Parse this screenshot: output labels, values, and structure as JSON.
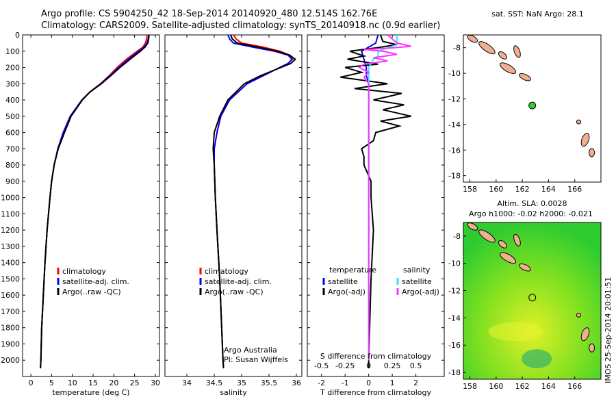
{
  "header": {
    "line1": "Argo profile: CS 5904250_42 18-Sep-2014 20140920_480 12.514S 162.76E",
    "line2": "Climatology: CARS2009. Satellite-adjusted climatology: synTS_20140918.nc (0.9d earlier)"
  },
  "side_label": "IMOS 25-Sep-2014 20:01:51",
  "credits": {
    "line1": "Argo Australia",
    "line2": "PI: Susan Wijffels"
  },
  "colors": {
    "climatology": "#ff0000",
    "satellite": "#0000ff",
    "argo": "#000000",
    "sal_satellite": "#33e5ff",
    "sal_argo": "#ff33ff",
    "land": "#f0b090"
  },
  "chart_data": [
    {
      "type": "line",
      "name": "temperature-profile",
      "xlabel": "temperature (deg C)",
      "ylabel": "",
      "xlim": [
        -2,
        31
      ],
      "ylim": [
        2100,
        0
      ],
      "xticks": [
        0,
        5,
        10,
        15,
        20,
        25,
        30
      ],
      "yticks": [
        0,
        100,
        200,
        300,
        400,
        500,
        600,
        700,
        800,
        900,
        1000,
        1100,
        1200,
        1300,
        1400,
        1500,
        1600,
        1700,
        1800,
        1900,
        2000
      ],
      "legend": [
        "climatology",
        "satellite-adj. clim.",
        "Argo(..raw -QC)"
      ],
      "series": [
        {
          "name": "climatology",
          "depth": [
            0,
            25,
            50,
            75,
            100,
            150,
            200,
            250,
            300,
            350,
            400,
            500,
            600,
            700,
            800,
            900,
            1000,
            1200,
            1400,
            1600,
            1800,
            2000,
            2050
          ],
          "values": [
            28.0,
            27.9,
            27.6,
            27.0,
            25.6,
            23.0,
            20.8,
            18.9,
            16.8,
            14.2,
            12.3,
            9.5,
            7.8,
            6.5,
            5.6,
            5.0,
            4.6,
            3.9,
            3.4,
            3.0,
            2.6,
            2.4,
            2.3
          ]
        },
        {
          "name": "satellite-adj. clim.",
          "depth": [
            0,
            25,
            50,
            75,
            100,
            150,
            200,
            250,
            300,
            350,
            400,
            500,
            600,
            700,
            800,
            900,
            1000,
            1200,
            1400,
            1600,
            1800,
            2000,
            2050
          ],
          "values": [
            28.4,
            28.3,
            28.0,
            27.3,
            26.0,
            23.5,
            21.2,
            19.1,
            16.9,
            14.3,
            12.3,
            9.5,
            7.8,
            6.5,
            5.6,
            5.0,
            4.6,
            3.9,
            3.4,
            3.0,
            2.6,
            2.4,
            2.3
          ]
        },
        {
          "name": "Argo(..raw -QC)",
          "depth": [
            0,
            25,
            50,
            75,
            100,
            150,
            200,
            250,
            300,
            350,
            400,
            500,
            600,
            700,
            800,
            900,
            1000,
            1200,
            1400,
            1600,
            1800,
            2000,
            2050
          ],
          "values": [
            28.5,
            28.4,
            28.2,
            27.5,
            26.4,
            23.9,
            21.5,
            19.3,
            17.0,
            14.3,
            12.4,
            9.7,
            8.1,
            6.6,
            5.6,
            5.0,
            4.6,
            3.9,
            3.4,
            3.0,
            2.6,
            2.4,
            2.3
          ]
        }
      ]
    },
    {
      "type": "line",
      "name": "salinity-profile",
      "xlabel": "salinity",
      "xlim": [
        33.6,
        36.1
      ],
      "ylim": [
        2100,
        0
      ],
      "xticks": [
        34,
        34.5,
        35,
        35.5,
        36
      ],
      "legend": [
        "climatology",
        "satellite-adj. clim.",
        "Argo(..raw -QC)"
      ],
      "series": [
        {
          "name": "climatology",
          "depth": [
            0,
            25,
            50,
            75,
            100,
            125,
            150,
            175,
            200,
            250,
            300,
            400,
            500,
            600,
            700,
            800,
            1000,
            1200,
            1500,
            2000,
            2050
          ],
          "values": [
            34.85,
            34.9,
            35.0,
            35.4,
            35.7,
            35.88,
            35.93,
            35.85,
            35.7,
            35.4,
            35.1,
            34.78,
            34.62,
            34.55,
            34.5,
            34.5,
            34.52,
            34.55,
            34.6,
            34.66,
            34.67
          ]
        },
        {
          "name": "satellite-adj. clim.",
          "depth": [
            0,
            25,
            50,
            75,
            100,
            125,
            150,
            175,
            200,
            250,
            300,
            400,
            500,
            600,
            700,
            800,
            1000,
            1200,
            1500,
            2000,
            2050
          ],
          "values": [
            34.75,
            34.78,
            34.85,
            35.2,
            35.6,
            35.85,
            35.92,
            35.85,
            35.7,
            35.4,
            35.1,
            34.78,
            34.62,
            34.55,
            34.5,
            34.5,
            34.52,
            34.55,
            34.6,
            34.66,
            34.67
          ]
        },
        {
          "name": "Argo(..raw -QC)",
          "depth": [
            0,
            25,
            50,
            75,
            100,
            125,
            150,
            175,
            200,
            250,
            300,
            400,
            500,
            600,
            700,
            800,
            1000,
            1200,
            1500,
            2000,
            2050
          ],
          "values": [
            34.8,
            34.83,
            34.92,
            35.3,
            35.65,
            35.88,
            35.98,
            35.9,
            35.72,
            35.35,
            35.05,
            34.75,
            34.6,
            34.5,
            34.48,
            34.5,
            34.52,
            34.55,
            34.6,
            34.66,
            34.67
          ]
        }
      ]
    },
    {
      "type": "line",
      "name": "difference-profile",
      "xlabel": "T difference from climatology",
      "top_label": "S difference from climatology",
      "xlim": [
        -2.6,
        3.2
      ],
      "ylim": [
        2100,
        0
      ],
      "xticks": [
        -2,
        -1,
        0,
        1,
        2
      ],
      "sticks": [
        "-0.5",
        "-0.25",
        "0",
        "0.25",
        "0.5"
      ],
      "legend_titles": [
        "temperature",
        "salinity"
      ],
      "legend": [
        "satellite",
        "Argo(-adj)",
        "satellite",
        "Argo(-adj)"
      ],
      "series": [
        {
          "name": "satellite",
          "variable": "temperature",
          "depth": [
            0,
            50,
            100,
            150,
            200,
            250,
            300,
            400,
            500,
            700,
            1000,
            1500,
            2000
          ],
          "values": [
            0.4,
            0.3,
            -0.3,
            -0.2,
            -0.1,
            -0.1,
            0.0,
            0.0,
            0.0,
            0.0,
            0.0,
            0.0,
            0.0
          ]
        },
        {
          "name": "Argo(-adj)",
          "variable": "temperature",
          "depth": [
            0,
            40,
            60,
            80,
            100,
            130,
            150,
            180,
            200,
            230,
            260,
            300,
            330,
            360,
            400,
            430,
            460,
            500,
            530,
            560,
            600,
            650,
            700,
            750,
            800,
            900,
            1000,
            1200,
            1500,
            2000,
            2050
          ],
          "values": [
            0.5,
            0.6,
            1.2,
            0.3,
            -0.8,
            -0.2,
            -0.9,
            0.4,
            -1.0,
            -0.3,
            -1.2,
            0.8,
            -0.6,
            1.4,
            0.2,
            1.5,
            0.6,
            1.8,
            0.5,
            1.3,
            0.3,
            0.2,
            -0.3,
            -0.2,
            -0.2,
            0.1,
            0.1,
            0.2,
            0.1,
            0.0,
            0.0
          ]
        },
        {
          "name": "satellite",
          "variable": "salinity",
          "depth": [
            0,
            60,
            80,
            100,
            130,
            150,
            200,
            300,
            400,
            500,
            700,
            1000,
            1500,
            2000
          ],
          "values": [
            0.3,
            0.3,
            0.2,
            0.1,
            0.1,
            0.05,
            0.0,
            0.0,
            0.0,
            0.0,
            0.0,
            0.0,
            0.0,
            0.0
          ]
        },
        {
          "name": "Argo(-adj)",
          "variable": "salinity",
          "depth": [
            0,
            50,
            70,
            80,
            90,
            100,
            120,
            140,
            160,
            180,
            200,
            230,
            260,
            300,
            350,
            400,
            500,
            700,
            1000,
            1500,
            2000
          ],
          "values": [
            0.2,
            0.3,
            0.45,
            0.25,
            -0.05,
            0.15,
            0.3,
            0.05,
            0.2,
            -0.05,
            -0.1,
            0.0,
            -0.05,
            0.0,
            0.0,
            0.0,
            0.0,
            0.0,
            0.0,
            0.0,
            0.0
          ]
        }
      ]
    },
    {
      "type": "scatter",
      "name": "sst-map",
      "title": "sat. SST: NaN Argo: 28.1",
      "xlim": [
        157.5,
        168
      ],
      "ylim": [
        -18.5,
        -7
      ],
      "xticks": [
        158,
        160,
        162,
        164,
        166
      ],
      "yticks": [
        -8,
        -10,
        -12,
        -14,
        -16,
        -18
      ],
      "points": [
        {
          "x": 162.76,
          "y": -12.514
        }
      ]
    },
    {
      "type": "heatmap",
      "name": "sla-map",
      "title": "Altim. SLA: 0.0028",
      "subtitle": "Argo h1000: -0.02 h2000: -0.021",
      "xlim": [
        157.5,
        168
      ],
      "ylim": [
        -18.5,
        -7
      ],
      "xticks": [
        158,
        160,
        162,
        164,
        166
      ],
      "yticks": [
        -8,
        -10,
        -12,
        -14,
        -16,
        -18
      ],
      "points": [
        {
          "x": 162.76,
          "y": -12.514
        }
      ]
    }
  ]
}
